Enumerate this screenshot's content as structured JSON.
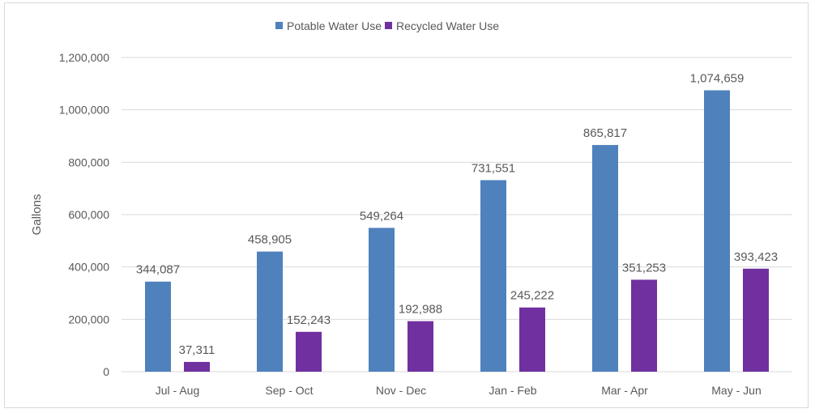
{
  "chart_data": {
    "type": "bar",
    "title": "",
    "xlabel": "",
    "ylabel": "Gallons",
    "ylim": [
      0,
      1200000
    ],
    "yticks": [
      0,
      200000,
      400000,
      600000,
      800000,
      1000000,
      1200000
    ],
    "ytick_labels": [
      "0",
      "200,000",
      "400,000",
      "600,000",
      "800,000",
      "1,000,000",
      "1,200,000"
    ],
    "grid": true,
    "legend_placement": "top",
    "categories": [
      "Jul - Aug",
      "Sep - Oct",
      "Nov - Dec",
      "Jan - Feb",
      "Mar - Apr",
      "May - Jun"
    ],
    "series": [
      {
        "name": "Potable Water Use",
        "color": "#4f81bd",
        "values": [
          344087,
          458905,
          549264,
          731551,
          865817,
          1074659
        ],
        "labels": [
          "344,087",
          "458,905",
          "549,264",
          "731,551",
          "865,817",
          "1,074,659"
        ]
      },
      {
        "name": "Recycled Water Use",
        "color": "#7030a0",
        "values": [
          37311,
          152243,
          192988,
          245222,
          351253,
          393423
        ],
        "labels": [
          "37,311",
          "152,243",
          "192,988",
          "245,222",
          "351,253",
          "393,423"
        ]
      }
    ]
  }
}
